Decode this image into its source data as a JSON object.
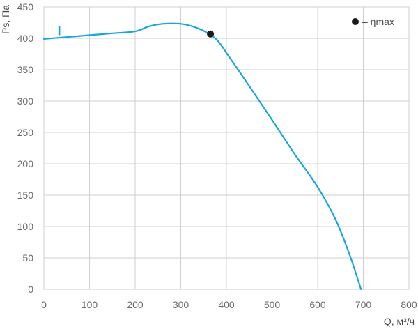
{
  "chart_data": {
    "type": "line",
    "xlabel": "Q, м³/ч",
    "ylabel": "Ps, Па",
    "xlim": [
      0,
      800
    ],
    "ylim": [
      0,
      450
    ],
    "x_ticks": [
      0,
      100,
      200,
      300,
      400,
      500,
      600,
      700,
      800
    ],
    "y_ticks": [
      0,
      50,
      100,
      150,
      200,
      250,
      300,
      350,
      400,
      450
    ],
    "grid": true,
    "legend_position": "top-right",
    "series": [
      {
        "name": "I",
        "color": "#1aa4e0",
        "x": [
          0,
          50,
          100,
          150,
          200,
          230,
          260,
          300,
          330,
          360,
          380,
          400,
          450,
          500,
          550,
          600,
          640,
          670,
          695
        ],
        "y": [
          399,
          402,
          405,
          408,
          411,
          419,
          423,
          423,
          418,
          408,
          397,
          377,
          324,
          270,
          215,
          163,
          110,
          55,
          0
        ]
      }
    ],
    "markers": [
      {
        "label": "ηmax",
        "x": 365,
        "y": 407,
        "color": "#1a1a1a"
      }
    ]
  },
  "legend": {
    "marker_text": "– ηmax"
  }
}
